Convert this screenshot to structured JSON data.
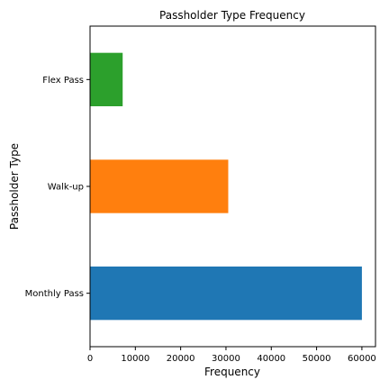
{
  "chart_data": {
    "type": "bar",
    "orientation": "horizontal",
    "title": "Passholder Type Frequency",
    "xlabel": "Frequency",
    "ylabel": "Passholder Type",
    "categories": [
      "Monthly Pass",
      "Walk-up",
      "Flex Pass"
    ],
    "values": [
      60000,
      30500,
      7200
    ],
    "colors": [
      "#1f77b4",
      "#ff7f0e",
      "#2ca02c"
    ],
    "xlim": [
      0,
      63000
    ],
    "xticks": [
      0,
      10000,
      20000,
      30000,
      40000,
      50000,
      60000
    ],
    "grid": false,
    "legend": "none"
  }
}
